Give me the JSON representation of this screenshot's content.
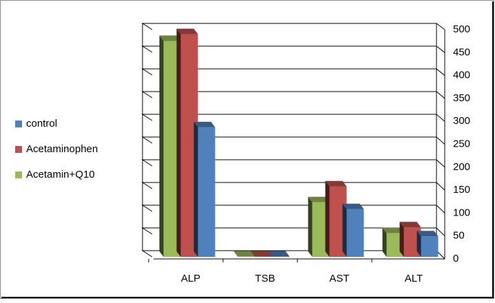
{
  "chart_data": {
    "type": "bar",
    "categories": [
      "ALP",
      "TSB",
      "AST",
      "ALT"
    ],
    "series": [
      {
        "name": "control",
        "color": "#4f81bd",
        "values": [
          285,
          1,
          105,
          45
        ]
      },
      {
        "name": "Acetaminophen",
        "color": "#c0504d",
        "values": [
          490,
          1,
          155,
          65
        ]
      },
      {
        "name": "Acetamin+Q10",
        "color": "#9bbb59",
        "values": [
          475,
          1,
          120,
          52
        ]
      }
    ],
    "ylim": [
      0,
      500
    ],
    "yticks": [
      0,
      50,
      100,
      150,
      200,
      250,
      300,
      350,
      400,
      450,
      500
    ],
    "grid": true,
    "legend": "left",
    "y_axis_side": "right"
  }
}
